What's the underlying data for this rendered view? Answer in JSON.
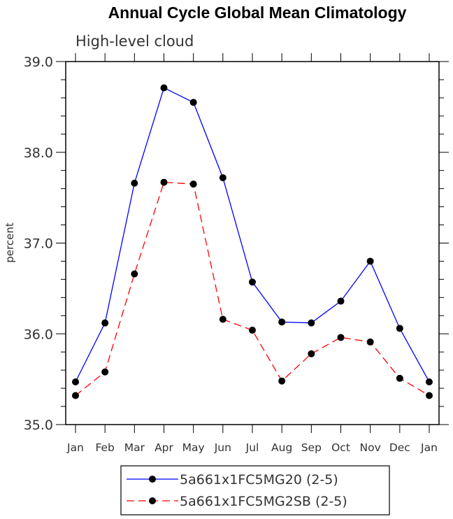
{
  "chart_data": {
    "type": "line",
    "title": "Annual Cycle Global Mean Climatology",
    "subtitle": "High-level cloud",
    "xlabel": "",
    "ylabel": "percent",
    "categories": [
      "Jan",
      "Feb",
      "Mar",
      "Apr",
      "May",
      "Jun",
      "Jul",
      "Aug",
      "Sep",
      "Oct",
      "Nov",
      "Dec",
      "Jan"
    ],
    "ylim": [
      35.0,
      39.0
    ],
    "yticks": [
      "35.0",
      "36.0",
      "37.0",
      "38.0",
      "39.0"
    ],
    "grid": false,
    "legend_position": "bottom",
    "series": [
      {
        "name": "5a661x1FC5MG20 (2-5)",
        "color": "#0000ff",
        "dash": "solid",
        "marker": "filled-circle",
        "values": [
          35.47,
          36.12,
          37.66,
          38.71,
          38.55,
          37.72,
          36.57,
          36.13,
          36.12,
          36.36,
          36.8,
          36.06,
          35.47
        ]
      },
      {
        "name": "5a661x1FC5MG2SB (2-5)",
        "color": "#ff0000",
        "dash": "dashed",
        "marker": "filled-circle",
        "values": [
          35.32,
          35.58,
          36.66,
          37.67,
          37.65,
          36.16,
          36.04,
          35.48,
          35.78,
          35.96,
          35.91,
          35.51,
          35.32
        ]
      }
    ]
  }
}
